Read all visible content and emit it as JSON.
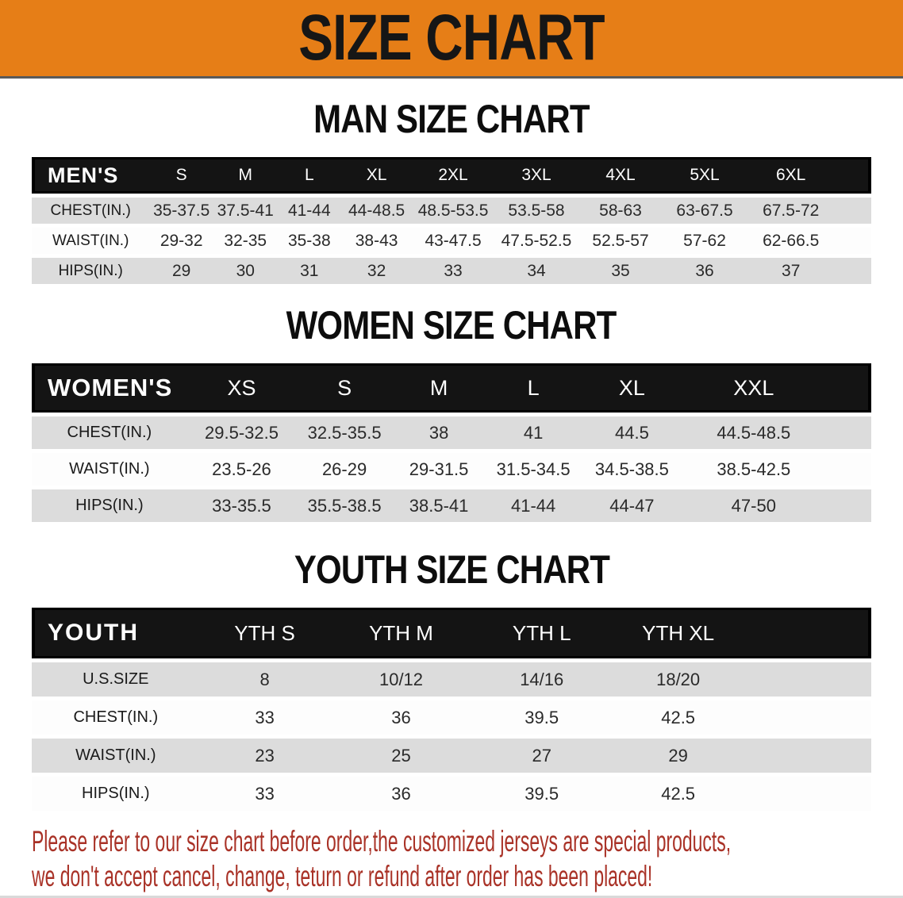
{
  "banner": {
    "title": "SIZE CHART"
  },
  "colors": {
    "banner_bg": "#e67e17",
    "banner_text": "#161616",
    "header_bar_bg": "#141414",
    "header_bar_text": "#ffffff",
    "row_stripe": "#dcdcdc",
    "row_white": "#fdfdfd",
    "disclaimer_text": "#a93227"
  },
  "chart_data": [
    {
      "type": "table",
      "title": "MAN SIZE CHART",
      "header_label": "MEN'S",
      "columns": [
        "S",
        "M",
        "L",
        "XL",
        "2XL",
        "3XL",
        "4XL",
        "5XL",
        "6XL"
      ],
      "rows": [
        {
          "label": "CHEST(IN.)",
          "values": [
            "35-37.5",
            "37.5-41",
            "41-44",
            "44-48.5",
            "48.5-53.5",
            "53.5-58",
            "58-63",
            "63-67.5",
            "67.5-72"
          ]
        },
        {
          "label": "WAIST(IN.)",
          "values": [
            "29-32",
            "32-35",
            "35-38",
            "38-43",
            "43-47.5",
            "47.5-52.5",
            "52.5-57",
            "57-62",
            "62-66.5"
          ]
        },
        {
          "label": "HIPS(IN.)",
          "values": [
            "29",
            "30",
            "31",
            "32",
            "33",
            "34",
            "35",
            "36",
            "37"
          ]
        }
      ]
    },
    {
      "type": "table",
      "title": "WOMEN SIZE CHART",
      "header_label": "WOMEN'S",
      "columns": [
        "XS",
        "S",
        "M",
        "L",
        "XL",
        "XXL"
      ],
      "rows": [
        {
          "label": "CHEST(IN.)",
          "values": [
            "29.5-32.5",
            "32.5-35.5",
            "38",
            "41",
            "44.5",
            "44.5-48.5"
          ]
        },
        {
          "label": "WAIST(IN.)",
          "values": [
            "23.5-26",
            "26-29",
            "29-31.5",
            "31.5-34.5",
            "34.5-38.5",
            "38.5-42.5"
          ]
        },
        {
          "label": "HIPS(IN.)",
          "values": [
            "33-35.5",
            "35.5-38.5",
            "38.5-41",
            "41-44",
            "44-47",
            "47-50"
          ]
        }
      ]
    },
    {
      "type": "table",
      "title": "YOUTH SIZE CHART",
      "header_label": "YOUTH",
      "columns": [
        "YTH S",
        "YTH M",
        "YTH L",
        "YTH XL"
      ],
      "rows": [
        {
          "label": "U.S.SIZE",
          "values": [
            "8",
            "10/12",
            "14/16",
            "18/20"
          ]
        },
        {
          "label": "CHEST(IN.)",
          "values": [
            "33",
            "36",
            "39.5",
            "42.5"
          ]
        },
        {
          "label": "WAIST(IN.)",
          "values": [
            "23",
            "25",
            "27",
            "29"
          ]
        },
        {
          "label": "HIPS(IN.)",
          "values": [
            "33",
            "36",
            "39.5",
            "42.5"
          ]
        }
      ]
    }
  ],
  "disclaimer": {
    "line1": "Please refer to our size chart before order,the customized jerseys are special products,",
    "line2": "we don't accept cancel, change, teturn or refund after order has been placed!"
  }
}
